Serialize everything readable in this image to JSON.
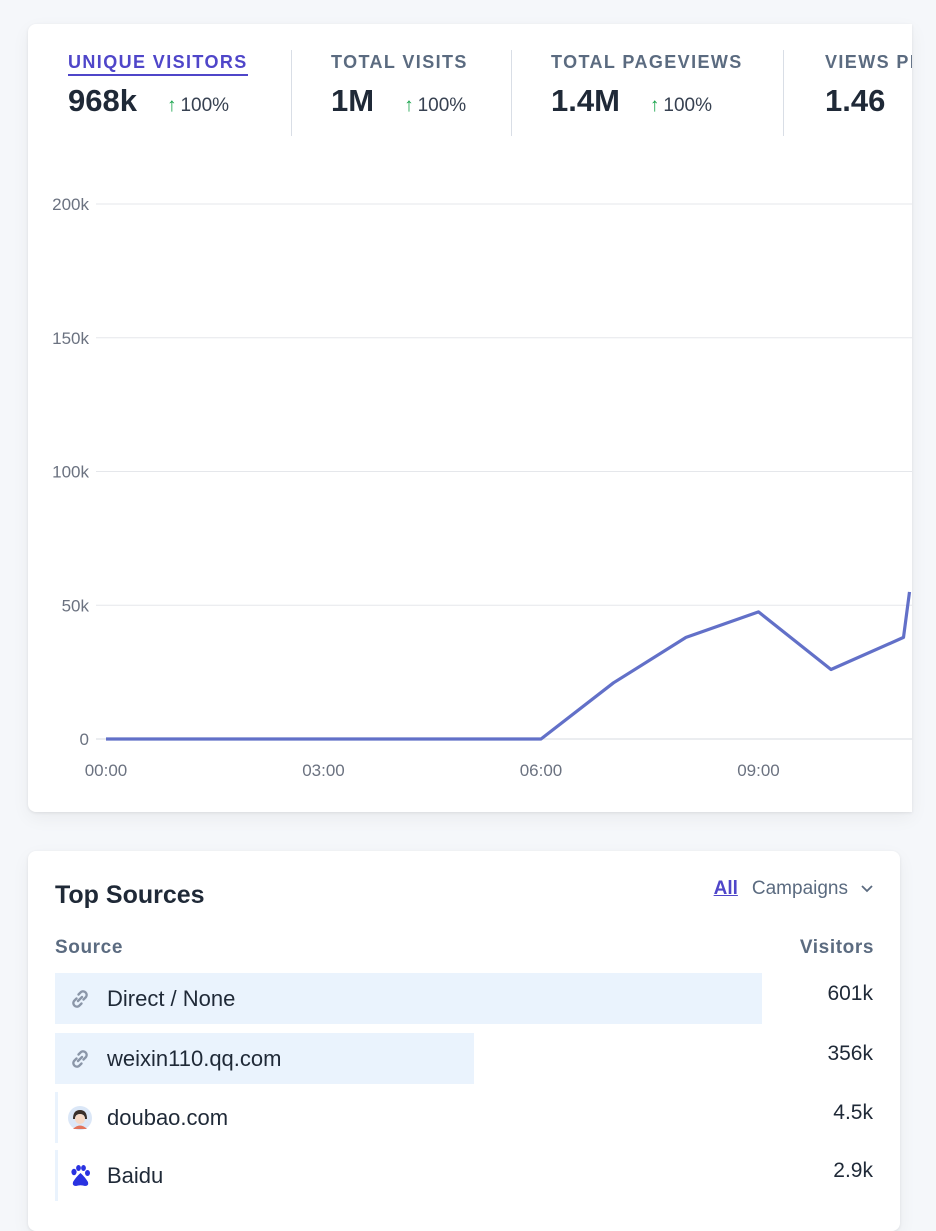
{
  "stats": [
    {
      "label": "UNIQUE VISITORS",
      "value": "968k",
      "change": "100%",
      "active": true
    },
    {
      "label": "TOTAL VISITS",
      "value": "1M",
      "change": "100%",
      "active": false
    },
    {
      "label": "TOTAL PAGEVIEWS",
      "value": "1.4M",
      "change": "100%",
      "active": false
    },
    {
      "label": "VIEWS PER VISIT",
      "value": "1.46",
      "change": "",
      "active": false
    }
  ],
  "chart_data": {
    "type": "line",
    "x": [
      "00:00",
      "01:00",
      "02:00",
      "03:00",
      "04:00",
      "05:00",
      "06:00",
      "07:00",
      "08:00",
      "09:00",
      "10:00",
      "11:00",
      "11:05"
    ],
    "series": [
      {
        "values": [
          0,
          0,
          0,
          0,
          0,
          0,
          0,
          21000,
          38000,
          47500,
          26000,
          38000,
          55000
        ]
      }
    ],
    "x_tick_labels": [
      "00:00",
      "03:00",
      "06:00",
      "09:00"
    ],
    "y_tick_labels": [
      "200k",
      "150k",
      "100k",
      "50k",
      "0"
    ],
    "ylim": [
      0,
      200000
    ],
    "line_color": "#6270c8",
    "grid": true
  },
  "top_sources": {
    "title": "Top Sources",
    "tab_all": "All",
    "tab_campaigns": "Campaigns",
    "col_source": "Source",
    "col_visitors": "Visitors",
    "rows": [
      {
        "name": "Direct / None",
        "visitors": "601k",
        "share": 0.864,
        "icon": "link-icon"
      },
      {
        "name": "weixin110.qq.com",
        "visitors": "356k",
        "share": 0.512,
        "icon": "link-icon"
      },
      {
        "name": "doubao.com",
        "visitors": "4.5k",
        "share": 0.006,
        "icon": "doubao-avatar-icon"
      },
      {
        "name": "Baidu",
        "visitors": "2.9k",
        "share": 0.004,
        "icon": "baidu-paw-icon"
      }
    ]
  }
}
